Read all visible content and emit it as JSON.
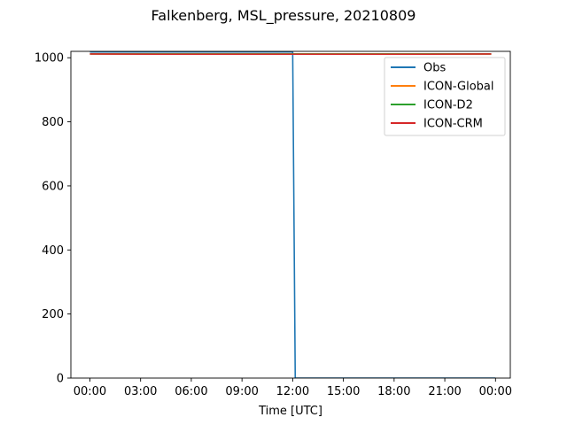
{
  "chart_data": {
    "type": "line",
    "title": "Falkenberg, MSL_pressure, 20210809",
    "xlabel": "Time [UTC]",
    "ylabel": "",
    "x_unit": "hours",
    "xlim": [
      -1.125,
      24.875
    ],
    "ylim": [
      0,
      1020
    ],
    "x_ticks": [
      0,
      3,
      6,
      9,
      12,
      15,
      18,
      21,
      24
    ],
    "x_tick_labels": [
      "00:00",
      "03:00",
      "06:00",
      "09:00",
      "12:00",
      "15:00",
      "18:00",
      "21:00",
      "00:00"
    ],
    "y_ticks": [
      0,
      200,
      400,
      600,
      800,
      1000
    ],
    "grid": false,
    "legend_position": "top-right",
    "series": [
      {
        "name": "Obs",
        "color": "#1f77b4",
        "x": [
          0,
          12.0,
          12.15,
          24.0
        ],
        "y": [
          1018,
          1018,
          0,
          0
        ]
      },
      {
        "name": "ICON-Global",
        "color": "#ff7f0e",
        "x": [
          0,
          23.75
        ],
        "y": [
          1012,
          1012
        ]
      },
      {
        "name": "ICON-D2",
        "color": "#2ca02c",
        "x": [
          0,
          23.75
        ],
        "y": [
          1012,
          1012
        ]
      },
      {
        "name": "ICON-CRM",
        "color": "#d62728",
        "x": [
          0,
          4,
          8,
          12,
          16,
          20,
          23.75
        ],
        "y": [
          1012,
          1011,
          1011,
          1011,
          1011,
          1011,
          1012
        ]
      }
    ]
  }
}
